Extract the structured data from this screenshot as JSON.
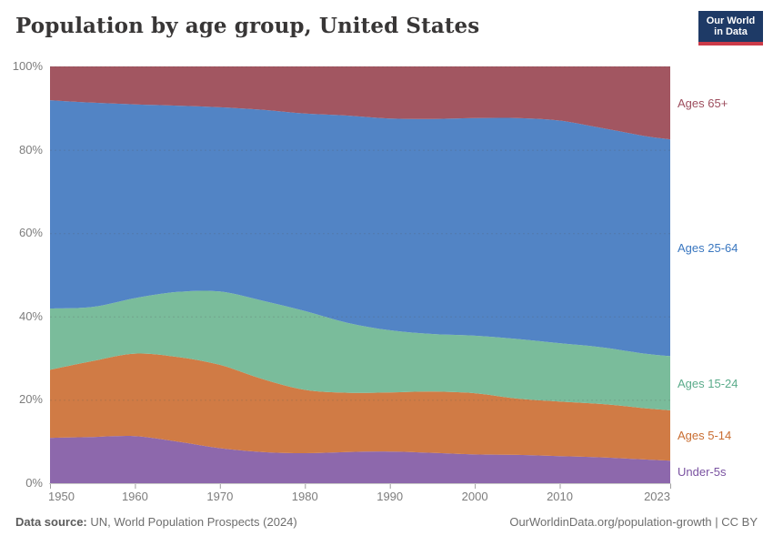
{
  "header": {
    "title": "Population by age group, United States",
    "logo": {
      "line1": "Our World",
      "line2": "in Data"
    },
    "logo_colors": {
      "background": "#1e3a66",
      "underline": "#cc3b49",
      "text": "#ffffff"
    }
  },
  "chart_data": {
    "type": "area",
    "stacked": true,
    "normalized": true,
    "unit": "%",
    "title": "Population by age group, United States",
    "xlabel": "",
    "ylabel": "",
    "ylim": [
      0,
      100
    ],
    "xlim": [
      1950,
      2023
    ],
    "grid": "dashed-horizontal",
    "legend_position": "right-edge",
    "x": [
      1950,
      1955,
      1960,
      1965,
      1970,
      1975,
      1980,
      1985,
      1990,
      1995,
      2000,
      2005,
      2010,
      2015,
      2020,
      2023
    ],
    "series": [
      {
        "name": "under-5s",
        "label": "Under-5s",
        "fill": "#8d68ac",
        "label_color": "#7a52a1",
        "values": [
          10.9,
          11.1,
          11.3,
          10.0,
          8.4,
          7.5,
          7.2,
          7.5,
          7.6,
          7.3,
          6.9,
          6.8,
          6.5,
          6.2,
          5.7,
          5.4
        ]
      },
      {
        "name": "ages-5-14",
        "label": "Ages 5-14",
        "fill": "#d07b45",
        "label_color": "#c96d31",
        "values": [
          16.3,
          18.2,
          19.8,
          20.3,
          20.0,
          17.5,
          15.2,
          14.2,
          14.2,
          14.7,
          14.7,
          13.5,
          13.1,
          12.8,
          12.3,
          12.1
        ]
      },
      {
        "name": "ages-15-24",
        "label": "Ages 15-24",
        "fill": "#7abc9b",
        "label_color": "#5aab8a",
        "values": [
          14.7,
          13.0,
          13.3,
          15.6,
          17.6,
          18.8,
          18.9,
          16.8,
          14.9,
          13.8,
          13.8,
          14.3,
          14.0,
          13.6,
          13.1,
          13.0
        ]
      },
      {
        "name": "ages-25-64",
        "label": "Ages 25-64",
        "fill": "#5284c5",
        "label_color": "#3a77c0",
        "values": [
          50.0,
          49.0,
          46.5,
          44.7,
          44.2,
          45.8,
          47.4,
          49.7,
          50.8,
          51.6,
          52.2,
          53.0,
          53.4,
          52.6,
          52.2,
          52.0
        ]
      },
      {
        "name": "ages-65plus",
        "label": "Ages 65+",
        "fill": "#a25661",
        "label_color": "#9d4e5e",
        "values": [
          8.1,
          8.7,
          9.1,
          9.4,
          9.8,
          10.4,
          11.3,
          11.8,
          12.5,
          12.6,
          12.4,
          12.4,
          13.0,
          14.8,
          16.7,
          17.5
        ]
      }
    ],
    "x_ticks": [
      {
        "value": 1950,
        "label": "1950"
      },
      {
        "value": 1960,
        "label": "1960"
      },
      {
        "value": 1970,
        "label": "1970"
      },
      {
        "value": 1980,
        "label": "1980"
      },
      {
        "value": 1990,
        "label": "1990"
      },
      {
        "value": 2000,
        "label": "2000"
      },
      {
        "value": 2010,
        "label": "2010"
      },
      {
        "value": 2023,
        "label": "2023"
      }
    ],
    "y_ticks": [
      {
        "value": 0,
        "label": "0%"
      },
      {
        "value": 20,
        "label": "20%"
      },
      {
        "value": 40,
        "label": "40%"
      },
      {
        "value": 60,
        "label": "60%"
      },
      {
        "value": 80,
        "label": "80%"
      },
      {
        "value": 100,
        "label": "100%"
      }
    ]
  },
  "footer": {
    "source_label": "Data source:",
    "source_text": " UN, World Population Prospects (2024)",
    "credit": "OurWorldinData.org/population-growth | CC BY"
  }
}
